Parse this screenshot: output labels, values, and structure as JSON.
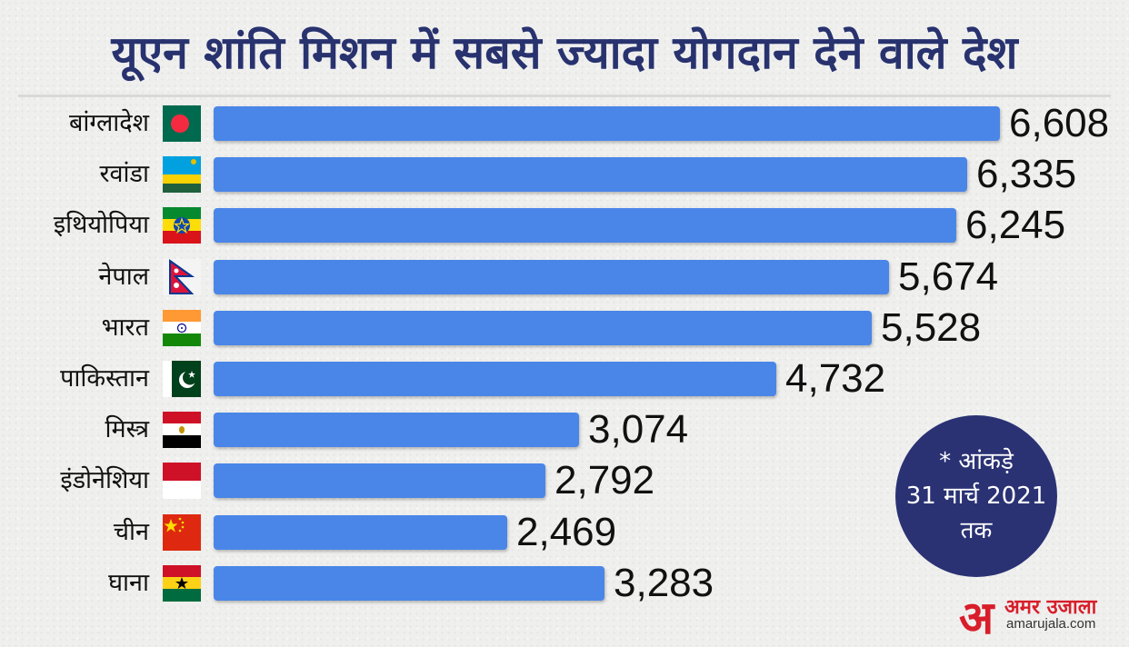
{
  "chart_data": {
    "type": "bar",
    "orientation": "horizontal",
    "title": "यूएन शांति मिशन में सबसे ज्यादा योगदान देने वाले देश",
    "categories": [
      "बांग्लादेश",
      "रवांडा",
      "इथियोपिया",
      "नेपाल",
      "भारत",
      "पाकिस्तान",
      "मिस्त्र",
      "इंडोनेशिया",
      "चीन",
      "घाना"
    ],
    "flags": [
      "bangladesh-flag",
      "rwanda-flag",
      "ethiopia-flag",
      "nepal-flag",
      "india-flag",
      "pakistan-flag",
      "egypt-flag",
      "indonesia-flag",
      "china-flag",
      "ghana-flag"
    ],
    "values": [
      6608,
      6335,
      6245,
      5674,
      5528,
      4732,
      3074,
      2792,
      2469,
      3283
    ],
    "value_labels": [
      "6,608",
      "6,335",
      "6,245",
      "5,674",
      "5,528",
      "4,732",
      "3,074",
      "2,792",
      "2,469",
      "3,283"
    ],
    "xlim": [
      0,
      6608
    ],
    "grid": false,
    "bar_color": "#4a86e8"
  },
  "note": {
    "line1": "* आंकड़े",
    "line2": "31 मार्च 2021",
    "line3": "तक"
  },
  "logo": {
    "mark": "अ",
    "hindi": "अमर उजाला",
    "domain": "amarujala.com"
  },
  "colors": {
    "title": "#28326e",
    "note_circle": "#2a3274",
    "brand_red": "#d81e2a"
  }
}
